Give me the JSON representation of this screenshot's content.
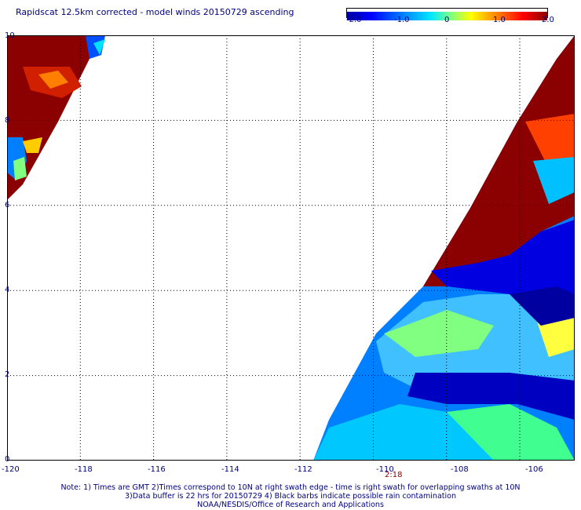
{
  "title": "Rapidscat 12.5km corrected - model winds 20150729 ascending",
  "colorbar": {
    "ticks": [
      "-2.0",
      "-1.0",
      "0",
      "1.0",
      "2.0"
    ],
    "colors": [
      "#0000a0",
      "#0000ff",
      "#0080ff",
      "#00e0ff",
      "#80ff80",
      "#ffff00",
      "#ff8000",
      "#ff0000",
      "#a00000",
      "#8b0000"
    ]
  },
  "chart_data": {
    "type": "heatmap",
    "title": "Rapidscat 12.5km corrected - model winds 20150729 ascending",
    "xlim": [
      -120,
      -104.5
    ],
    "ylim": [
      0,
      10
    ],
    "x_ticks": [
      "-120",
      "-118",
      "-116",
      "-114",
      "-112",
      "-110",
      "-108",
      "-106"
    ],
    "y_ticks": [
      "0",
      "2",
      "4",
      "6",
      "8",
      "10"
    ],
    "color_range": [
      -2.0,
      2.0
    ],
    "grid": true,
    "swath_time_label": "2:18"
  },
  "notes": [
    "Note: 1) Times are GMT 2)Times correspond to 10N at right swath edge - time is right swath for overlapping swaths at 10N",
    "3)Data buffer is 22 hrs for 20150729 4) Black barbs indicate possible rain contamination",
    "NOAA/NESDIS/Office of Research and Applications"
  ]
}
